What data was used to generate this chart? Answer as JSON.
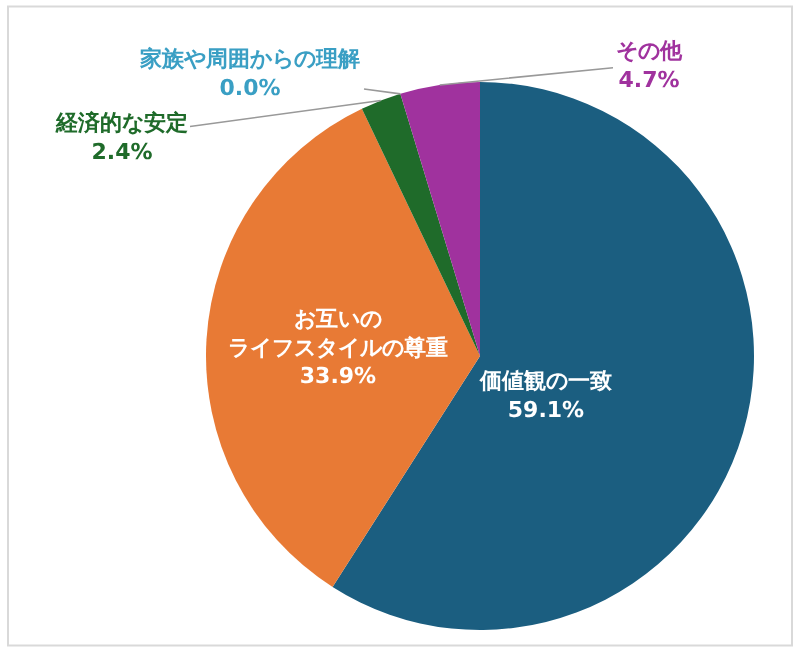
{
  "chart_data": {
    "type": "pie",
    "categories": [
      "価値観の一致",
      "お互いのライフスタイルの尊重",
      "経済的な安定",
      "家族や周囲からの理解",
      "その他"
    ],
    "values": [
      59.1,
      33.9,
      2.4,
      0.0,
      4.7
    ],
    "value_labels": [
      "59.1%",
      "33.9%",
      "2.4%",
      "0.0%",
      "4.7%"
    ],
    "colors": [
      "#1b5e80",
      "#e87a35",
      "#1f6b2a",
      "#3a9fc4",
      "#a0329e"
    ],
    "legend": false
  }
}
